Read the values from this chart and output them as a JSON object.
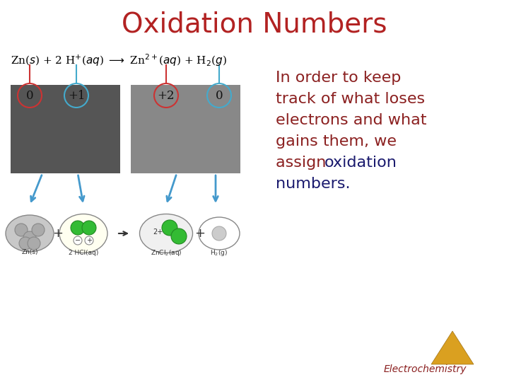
{
  "title": "Oxidation Numbers",
  "title_color": "#B22222",
  "title_fontsize": 28,
  "background_color": "#FFFFFF",
  "body_text_color": "#8B2020",
  "body_highlight_color": "#1a1a6e",
  "body_fontsize": 16,
  "ox_numbers": [
    "0",
    "+1",
    "+2",
    "0"
  ],
  "ox_colors_circle": [
    "#CC3333",
    "#44AACC",
    "#CC3333",
    "#44AACC"
  ],
  "ox_colors_text": [
    "#000000",
    "#000000",
    "#000000",
    "#000000"
  ],
  "watermark_text": "Electrochemistry",
  "watermark_color": "#8B2020",
  "watermark_fontsize": 10,
  "triangle_color": "#DAA020",
  "eq_color": "#000000",
  "eq_fontsize": 11,
  "line_color_red": "#CC3333",
  "line_color_blue": "#44AACC",
  "photo_left_color": "#555555",
  "photo_right_color": "#888888"
}
